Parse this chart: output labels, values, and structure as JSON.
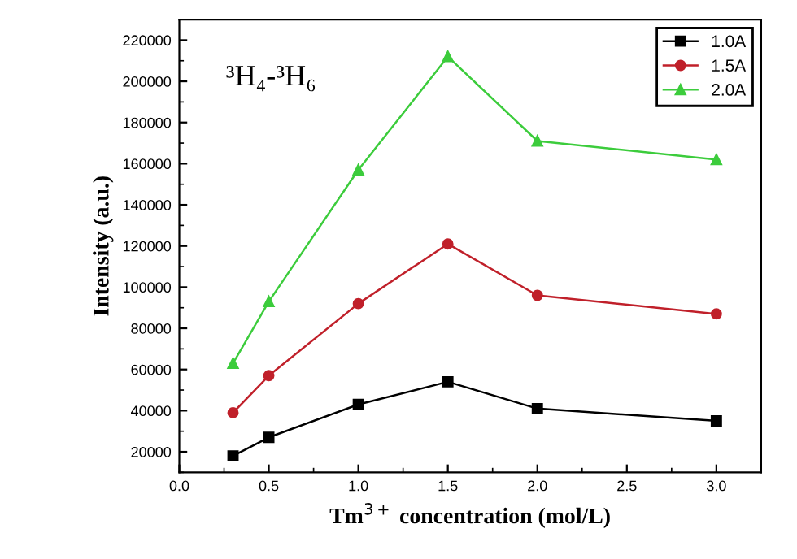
{
  "chart_data": {
    "type": "line",
    "xlabel": "Tm$^{3+}$ concentration (mol/L)",
    "ylabel": "Intensity (a.u.)",
    "annotations": [
      "³H₄-³H₆"
    ],
    "x": [
      0.3,
      0.5,
      1.0,
      1.5,
      2.0,
      3.0
    ],
    "series": [
      {
        "name": "1.0A",
        "color": "#000000",
        "marker": "square",
        "values": [
          18000,
          27000,
          43000,
          54000,
          41000,
          35000
        ]
      },
      {
        "name": "1.5A",
        "color": "#c0202a",
        "marker": "circle",
        "values": [
          39000,
          57000,
          92000,
          121000,
          96000,
          87000
        ]
      },
      {
        "name": "2.0A",
        "color": "#3ccc3c",
        "marker": "triangle",
        "values": [
          63000,
          93000,
          157000,
          212000,
          171000,
          162000
        ]
      }
    ],
    "xlim": [
      0.0,
      3.25
    ],
    "xticks": [
      {
        "value": 0,
        "label": "0.0"
      },
      {
        "value": 0.5,
        "label": "0.5"
      },
      {
        "value": 1,
        "label": "1.0"
      },
      {
        "value": 1.5,
        "label": "1.5"
      },
      {
        "value": 2,
        "label": "2.0"
      },
      {
        "value": 2.5,
        "label": "2.5"
      },
      {
        "value": 3,
        "label": "3.0"
      }
    ],
    "ylim": [
      10000,
      230000
    ],
    "yticks": [
      20000,
      40000,
      60000,
      80000,
      100000,
      120000,
      140000,
      160000,
      180000,
      200000,
      220000
    ],
    "legend": "top right",
    "grid": false,
    "line_style": "solid"
  }
}
